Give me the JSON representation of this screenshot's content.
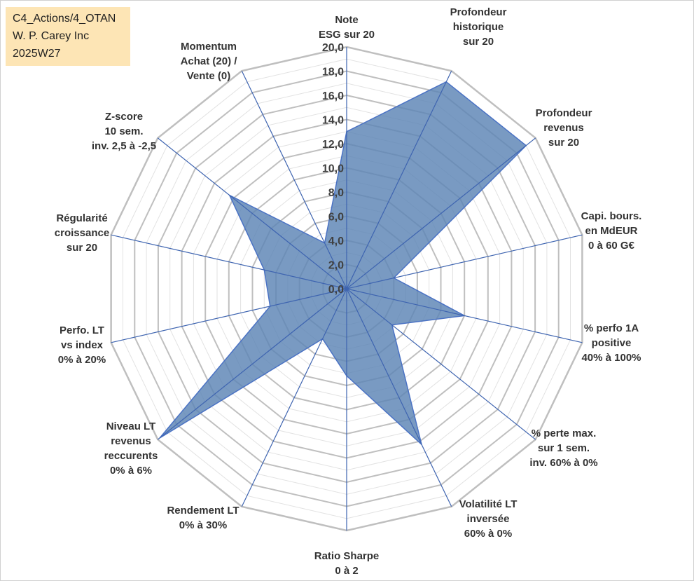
{
  "info_box": {
    "line1": "C4_Actions/4_OTAN",
    "line2": "W. P. Carey Inc",
    "line3": "2025W27"
  },
  "chart_data": {
    "type": "radar",
    "title": "",
    "rmin": 0,
    "rmax": 20,
    "ticks": [
      "0,0",
      "2,0",
      "4,0",
      "6,0",
      "8,0",
      "10,0",
      "12,0",
      "14,0",
      "16,0",
      "18,0",
      "20,0"
    ],
    "tick_values": [
      0,
      2,
      4,
      6,
      8,
      10,
      12,
      14,
      16,
      18,
      20
    ],
    "minor_step": 1,
    "grid": true,
    "axes": [
      {
        "label": [
          "Note",
          "ESG sur 20"
        ],
        "value": 13.0
      },
      {
        "label": [
          "Profondeur",
          "historique",
          "sur 20"
        ],
        "value": 19.0
      },
      {
        "label": [
          "Profondeur",
          "revenus",
          "sur 20"
        ],
        "value": 19.0
      },
      {
        "label": [
          "Capi. bours.",
          "en MdEUR",
          "0 à 60 G€"
        ],
        "value": 4.0
      },
      {
        "label": [
          "% perfo 1A",
          "positive",
          "40% à 100%"
        ],
        "value": 10.0
      },
      {
        "label": [
          "% perte max.",
          "sur 1 sem.",
          "inv. 60% à 0%"
        ],
        "value": 4.8
      },
      {
        "label": [
          "Volatilité LT",
          "inversée",
          "60% à 0%"
        ],
        "value": 14.3
      },
      {
        "label": [
          "Ratio Sharpe",
          "0 à 2"
        ],
        "value": 7.2
      },
      {
        "label": [
          "Rendement LT",
          "0% à 30%"
        ],
        "value": 4.6
      },
      {
        "label": [
          "Niveau LT",
          "revenus",
          "reccurents",
          "0% à 6%"
        ],
        "value": 19.8
      },
      {
        "label": [
          "Perfo. LT",
          "vs index",
          "0% à 20%"
        ],
        "value": 6.5
      },
      {
        "label": [
          "Régularité",
          "croissance",
          "sur 20"
        ],
        "value": 7.0
      },
      {
        "label": [
          "Z-score",
          "10 sem.",
          "inv. 2,5 à -2,5"
        ],
        "value": 12.4
      },
      {
        "label": [
          "Momentum",
          "Achat (20) /",
          "Vente (0)"
        ],
        "value": 4.2
      }
    ],
    "colors": {
      "fill": "#5b84b5",
      "stroke": "#4a72c4",
      "spoke": "#3e64b0",
      "grid_major": "#bfbfbf",
      "grid_minor": "#e2e2e2"
    }
  }
}
